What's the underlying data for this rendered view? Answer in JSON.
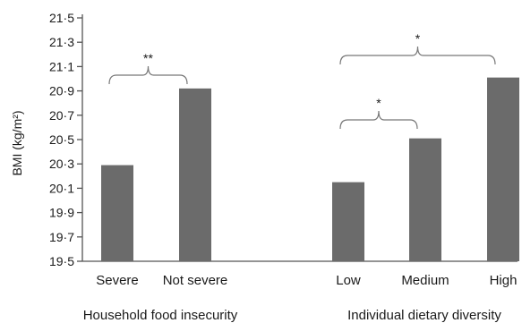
{
  "chart_data": {
    "type": "bar",
    "ylabel": "BMI (kg/m²)",
    "ylim": [
      19.5,
      21.5
    ],
    "yticks": [
      "19·5",
      "19·7",
      "19·9",
      "20·1",
      "20·3",
      "20·5",
      "20·7",
      "20·9",
      "21·1",
      "21·3",
      "21·5"
    ],
    "ytick_values": [
      19.5,
      19.7,
      19.9,
      20.1,
      20.3,
      20.5,
      20.7,
      20.9,
      21.1,
      21.3,
      21.5
    ],
    "grid": false,
    "bar_color": "#6b6b6b",
    "groups": [
      {
        "label": "Household food insecurity",
        "categories": [
          "Severe",
          "Not severe"
        ],
        "values": [
          20.29,
          20.92
        ]
      },
      {
        "label": "Individual dietary diversity",
        "categories": [
          "Low",
          "Medium",
          "High"
        ],
        "values": [
          20.15,
          20.51,
          21.01
        ]
      }
    ],
    "annotations": [
      {
        "label": "**",
        "from": "Severe",
        "to": "Not severe"
      },
      {
        "label": "*",
        "from": "Low",
        "to": "Medium"
      },
      {
        "label": "*",
        "from": "Low",
        "to": "High"
      }
    ]
  }
}
